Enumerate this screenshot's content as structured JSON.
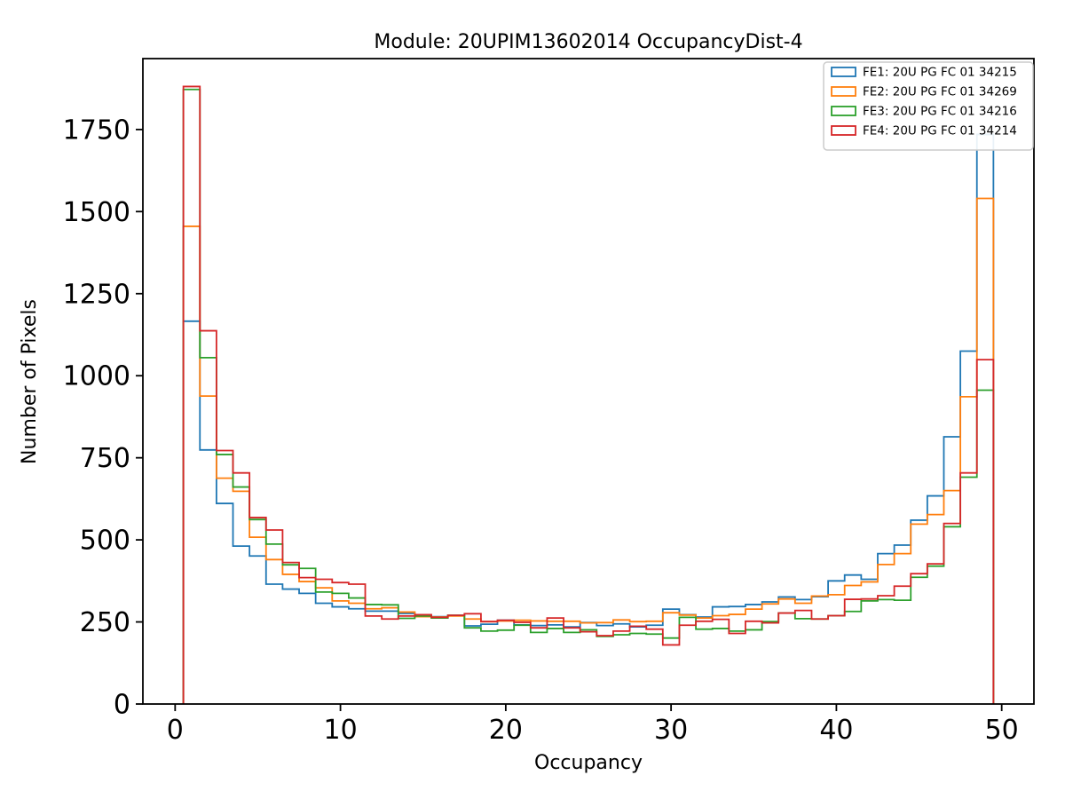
{
  "page": {
    "background": "#ffffff"
  },
  "chart_data": {
    "type": "step-histogram",
    "title": "Module: 20UPIM13602014 OccupancyDist-4",
    "xlabel": "Occupancy",
    "ylabel": "Number of Pixels",
    "bin_start": 0.5,
    "bin_width": 1,
    "bin_count": 49,
    "xlim": [
      -1.95,
      51.95
    ],
    "ylim": [
      0,
      1966
    ],
    "x_ticks": [
      0,
      10,
      20,
      30,
      40,
      50
    ],
    "y_ticks": [
      0,
      250,
      500,
      750,
      1000,
      1250,
      1500,
      1750
    ],
    "grid": false,
    "legend_position": "upper right",
    "axis_color": "#000000",
    "legend_edge_color": "#cccccc",
    "series": [
      {
        "name": "FE1: 20U PG FC 01 34215",
        "color": "#1f77b4",
        "values": [
          1166,
          774,
          611,
          481,
          451,
          365,
          350,
          337,
          307,
          296,
          290,
          283,
          283,
          276,
          270,
          266,
          270,
          238,
          243,
          255,
          241,
          239,
          241,
          235,
          248,
          239,
          244,
          235,
          240,
          289,
          272,
          265,
          296,
          297,
          303,
          311,
          326,
          318,
          327,
          375,
          393,
          380,
          458,
          484,
          560,
          634,
          814,
          1075,
          1735
        ]
      },
      {
        "name": "FE2: 20U PG FC 01 34269",
        "color": "#ff7f0e",
        "values": [
          1455,
          938,
          688,
          648,
          508,
          440,
          395,
          373,
          354,
          314,
          307,
          290,
          293,
          280,
          266,
          265,
          268,
          259,
          251,
          253,
          255,
          253,
          252,
          252,
          247,
          248,
          256,
          251,
          252,
          278,
          271,
          262,
          269,
          273,
          289,
          305,
          320,
          307,
          329,
          333,
          361,
          372,
          425,
          458,
          548,
          577,
          650,
          936,
          1540
        ]
      },
      {
        "name": "FE3: 20U PG FC 01 34216",
        "color": "#2ca02c",
        "values": [
          1872,
          1055,
          760,
          661,
          562,
          487,
          424,
          413,
          341,
          337,
          323,
          303,
          302,
          261,
          268,
          262,
          270,
          232,
          222,
          225,
          240,
          218,
          230,
          218,
          226,
          206,
          211,
          215,
          213,
          201,
          264,
          228,
          230,
          222,
          226,
          251,
          277,
          260,
          259,
          269,
          282,
          314,
          318,
          316,
          386,
          420,
          540,
          691,
          956
        ]
      },
      {
        "name": "FE4: 20U PG FC 01 34214",
        "color": "#d62728",
        "values": [
          1881,
          1137,
          772,
          704,
          568,
          530,
          431,
          385,
          380,
          370,
          365,
          268,
          259,
          268,
          272,
          264,
          270,
          275,
          251,
          255,
          249,
          232,
          262,
          232,
          220,
          208,
          222,
          237,
          228,
          180,
          240,
          252,
          258,
          215,
          252,
          247,
          277,
          285,
          259,
          269,
          319,
          320,
          330,
          359,
          397,
          427,
          550,
          704,
          1049
        ]
      }
    ]
  }
}
